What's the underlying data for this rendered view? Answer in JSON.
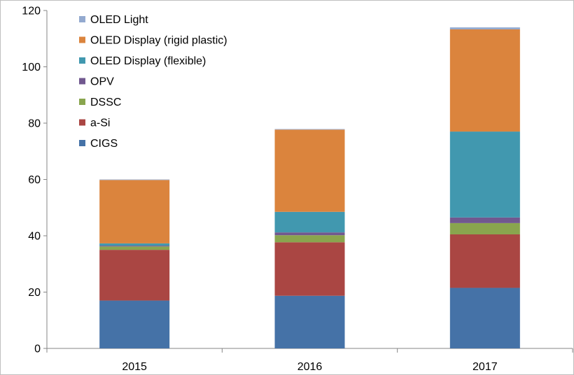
{
  "chart_data": {
    "type": "bar",
    "stacked": true,
    "title": "",
    "xlabel": "",
    "ylabel": "",
    "ylim": [
      0,
      120
    ],
    "yticks": [
      "0",
      "20",
      "40",
      "60",
      "80",
      "100",
      "120"
    ],
    "categories": [
      "2015",
      "2016",
      "2017"
    ],
    "grid": false,
    "legend_position": "top-left",
    "series": [
      {
        "name": "CIGS",
        "color": "#4572a7",
        "values": [
          17.0,
          18.7,
          21.5
        ]
      },
      {
        "name": "a-Si",
        "color": "#aa4643",
        "values": [
          18.0,
          19.0,
          19.0
        ]
      },
      {
        "name": "DSSC",
        "color": "#89a54e",
        "values": [
          1.2,
          2.5,
          4.0
        ]
      },
      {
        "name": "OPV",
        "color": "#71588f",
        "values": [
          0.3,
          1.0,
          2.0
        ]
      },
      {
        "name": "OLED Display (flexible)",
        "color": "#4198af",
        "values": [
          0.8,
          7.3,
          30.5
        ]
      },
      {
        "name": "OLED Display (rigid plastic)",
        "color": "#db843d",
        "values": [
          22.5,
          29.2,
          36.3
        ]
      },
      {
        "name": "OLED Light",
        "color": "#93a9cf",
        "values": [
          0.2,
          0.2,
          0.7
        ]
      }
    ]
  }
}
